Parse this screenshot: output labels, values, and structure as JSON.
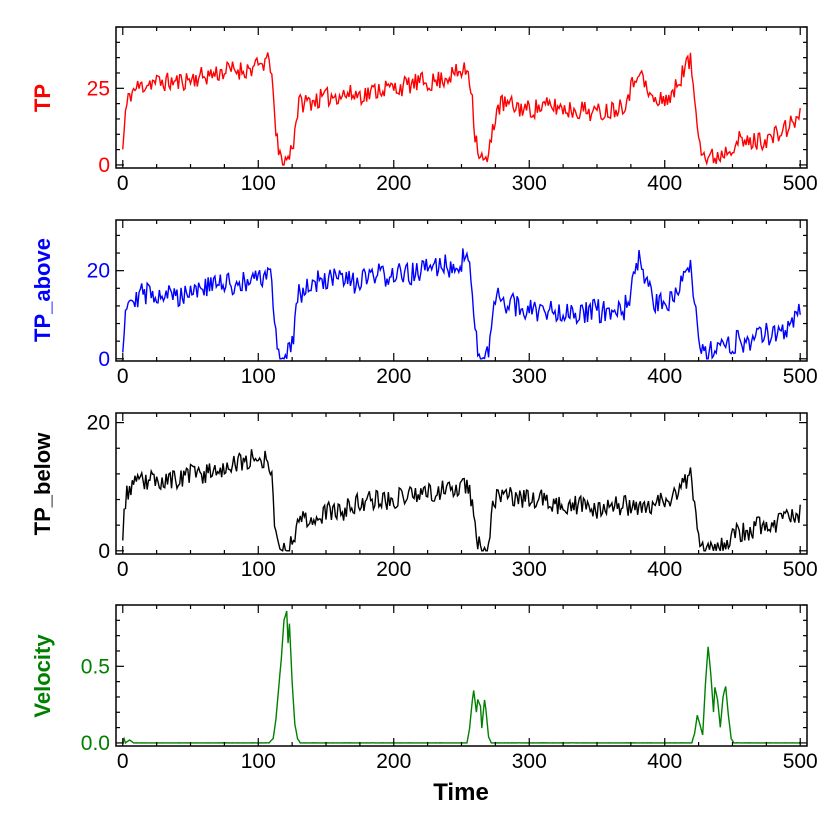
{
  "chart_data": [
    {
      "type": "line",
      "ylabel": "TP",
      "xlabel": "",
      "color": "#ff0000",
      "xlim": [
        -5,
        505
      ],
      "ylim": [
        -1,
        45
      ],
      "xticks": [
        0,
        100,
        200,
        300,
        400,
        500
      ],
      "xtick_labels": [
        "0",
        "100",
        "200",
        "300",
        "400",
        "500"
      ],
      "yticks": [
        0,
        25
      ],
      "ytick_labels": [
        "0",
        "25"
      ],
      "anchors": [
        [
          0,
          5
        ],
        [
          2,
          17
        ],
        [
          5,
          23
        ],
        [
          10,
          25
        ],
        [
          20,
          27
        ],
        [
          30,
          27
        ],
        [
          40,
          27
        ],
        [
          50,
          28
        ],
        [
          60,
          29
        ],
        [
          70,
          30
        ],
        [
          80,
          31
        ],
        [
          90,
          31
        ],
        [
          100,
          32
        ],
        [
          106,
          34
        ],
        [
          110,
          32
        ],
        [
          112,
          14
        ],
        [
          115,
          4
        ],
        [
          118,
          1
        ],
        [
          122,
          2
        ],
        [
          126,
          8
        ],
        [
          128,
          15
        ],
        [
          130,
          20
        ],
        [
          140,
          21
        ],
        [
          150,
          22
        ],
        [
          160,
          23
        ],
        [
          170,
          23
        ],
        [
          180,
          23
        ],
        [
          190,
          25
        ],
        [
          200,
          25
        ],
        [
          210,
          26
        ],
        [
          220,
          27
        ],
        [
          230,
          27
        ],
        [
          240,
          29
        ],
        [
          248,
          30
        ],
        [
          255,
          31
        ],
        [
          258,
          22
        ],
        [
          260,
          10
        ],
        [
          263,
          4
        ],
        [
          266,
          1
        ],
        [
          270,
          2
        ],
        [
          273,
          12
        ],
        [
          276,
          18
        ],
        [
          280,
          20
        ],
        [
          290,
          19
        ],
        [
          300,
          18
        ],
        [
          310,
          19
        ],
        [
          320,
          19
        ],
        [
          330,
          18
        ],
        [
          340,
          18
        ],
        [
          350,
          17
        ],
        [
          360,
          18
        ],
        [
          370,
          20
        ],
        [
          377,
          27
        ],
        [
          381,
          32
        ],
        [
          385,
          26
        ],
        [
          390,
          22
        ],
        [
          395,
          20
        ],
        [
          400,
          22
        ],
        [
          405,
          22
        ],
        [
          410,
          27
        ],
        [
          415,
          32
        ],
        [
          419,
          34
        ],
        [
          421,
          26
        ],
        [
          424,
          15
        ],
        [
          427,
          6
        ],
        [
          430,
          2
        ],
        [
          440,
          3
        ],
        [
          448,
          6
        ],
        [
          455,
          8
        ],
        [
          460,
          7
        ],
        [
          470,
          8
        ],
        [
          480,
          9
        ],
        [
          490,
          12
        ],
        [
          500,
          16
        ]
      ],
      "noise": 3.2,
      "noise_min": 0,
      "seed": 11,
      "ymin_clip": 0
    },
    {
      "type": "line",
      "ylabel": "TP_above",
      "xlabel": "",
      "color": "#0000ff",
      "xlim": [
        -5,
        505
      ],
      "ylim": [
        -0.5,
        31.5
      ],
      "xticks": [
        0,
        100,
        200,
        300,
        400,
        500
      ],
      "xtick_labels": [
        "0",
        "100",
        "200",
        "300",
        "400",
        "500"
      ],
      "yticks": [
        0,
        20
      ],
      "ytick_labels": [
        "0",
        "20"
      ],
      "anchors": [
        [
          0,
          3
        ],
        [
          2,
          12
        ],
        [
          5,
          14
        ],
        [
          20,
          15
        ],
        [
          30,
          15
        ],
        [
          40,
          14
        ],
        [
          50,
          16
        ],
        [
          60,
          16
        ],
        [
          70,
          17
        ],
        [
          80,
          17
        ],
        [
          90,
          17
        ],
        [
          100,
          18
        ],
        [
          106,
          19
        ],
        [
          110,
          18
        ],
        [
          112,
          8
        ],
        [
          115,
          2
        ],
        [
          118,
          0
        ],
        [
          122,
          1
        ],
        [
          126,
          6
        ],
        [
          128,
          12
        ],
        [
          130,
          15
        ],
        [
          140,
          17
        ],
        [
          150,
          18
        ],
        [
          160,
          18
        ],
        [
          170,
          17
        ],
        [
          180,
          18
        ],
        [
          190,
          19
        ],
        [
          200,
          19
        ],
        [
          210,
          19
        ],
        [
          220,
          20
        ],
        [
          230,
          21
        ],
        [
          240,
          21
        ],
        [
          248,
          22
        ],
        [
          255,
          23
        ],
        [
          258,
          15
        ],
        [
          260,
          6
        ],
        [
          263,
          2
        ],
        [
          266,
          0
        ],
        [
          270,
          1
        ],
        [
          273,
          9
        ],
        [
          276,
          14
        ],
        [
          280,
          13
        ],
        [
          290,
          12
        ],
        [
          300,
          11
        ],
        [
          310,
          11
        ],
        [
          320,
          11
        ],
        [
          330,
          11
        ],
        [
          340,
          10
        ],
        [
          350,
          11
        ],
        [
          360,
          10
        ],
        [
          370,
          11
        ],
        [
          377,
          17
        ],
        [
          381,
          23
        ],
        [
          385,
          18
        ],
        [
          390,
          14
        ],
        [
          395,
          12
        ],
        [
          400,
          13
        ],
        [
          405,
          13
        ],
        [
          410,
          17
        ],
        [
          415,
          21
        ],
        [
          419,
          22
        ],
        [
          421,
          16
        ],
        [
          424,
          8
        ],
        [
          427,
          3
        ],
        [
          430,
          1
        ],
        [
          440,
          2
        ],
        [
          448,
          3
        ],
        [
          455,
          4
        ],
        [
          460,
          4
        ],
        [
          470,
          5
        ],
        [
          480,
          6
        ],
        [
          490,
          7
        ],
        [
          500,
          11
        ]
      ],
      "noise": 2.7,
      "noise_min": 0,
      "seed": 29,
      "ymin_clip": 0
    },
    {
      "type": "line",
      "ylabel": "TP_below",
      "xlabel": "",
      "color": "#000000",
      "xlim": [
        -5,
        505
      ],
      "ylim": [
        -0.5,
        21.5
      ],
      "xticks": [
        0,
        100,
        200,
        300,
        400,
        500
      ],
      "xtick_labels": [
        "0",
        "100",
        "200",
        "300",
        "400",
        "500"
      ],
      "yticks": [
        0,
        20
      ],
      "ytick_labels": [
        "0",
        "20"
      ],
      "anchors": [
        [
          0,
          3
        ],
        [
          2,
          8
        ],
        [
          5,
          10
        ],
        [
          20,
          11
        ],
        [
          30,
          11
        ],
        [
          40,
          11
        ],
        [
          50,
          12
        ],
        [
          60,
          12
        ],
        [
          70,
          13
        ],
        [
          80,
          13
        ],
        [
          90,
          14
        ],
        [
          100,
          15
        ],
        [
          106,
          14
        ],
        [
          110,
          12
        ],
        [
          112,
          5
        ],
        [
          115,
          1
        ],
        [
          118,
          0
        ],
        [
          122,
          0.5
        ],
        [
          126,
          2
        ],
        [
          128,
          4
        ],
        [
          130,
          5
        ],
        [
          140,
          5
        ],
        [
          150,
          6
        ],
        [
          160,
          6
        ],
        [
          170,
          7
        ],
        [
          180,
          8
        ],
        [
          190,
          8
        ],
        [
          200,
          8
        ],
        [
          210,
          9
        ],
        [
          220,
          9
        ],
        [
          230,
          9
        ],
        [
          240,
          10
        ],
        [
          248,
          10
        ],
        [
          255,
          10
        ],
        [
          258,
          7
        ],
        [
          260,
          3
        ],
        [
          263,
          1
        ],
        [
          266,
          0
        ],
        [
          270,
          0.5
        ],
        [
          273,
          7
        ],
        [
          276,
          9
        ],
        [
          280,
          9
        ],
        [
          290,
          8
        ],
        [
          300,
          8
        ],
        [
          310,
          8
        ],
        [
          320,
          7
        ],
        [
          330,
          7
        ],
        [
          340,
          7
        ],
        [
          350,
          6
        ],
        [
          360,
          7
        ],
        [
          370,
          7
        ],
        [
          380,
          7
        ],
        [
          390,
          7
        ],
        [
          400,
          8
        ],
        [
          410,
          9
        ],
        [
          415,
          11
        ],
        [
          419,
          12
        ],
        [
          421,
          8
        ],
        [
          424,
          3
        ],
        [
          427,
          1
        ],
        [
          430,
          0.5
        ],
        [
          440,
          1
        ],
        [
          448,
          2
        ],
        [
          455,
          3
        ],
        [
          460,
          3
        ],
        [
          470,
          4
        ],
        [
          480,
          4
        ],
        [
          490,
          5
        ],
        [
          500,
          6
        ]
      ],
      "noise": 1.6,
      "noise_min": 0,
      "seed": 53,
      "ymin_clip": 0
    },
    {
      "type": "line",
      "ylabel": "Velocity",
      "xlabel": "Time",
      "color": "#008000",
      "xlim": [
        -5,
        505
      ],
      "ylim": [
        -0.02,
        0.9
      ],
      "xticks": [
        0,
        100,
        200,
        300,
        400,
        500
      ],
      "xtick_labels": [
        "0",
        "100",
        "200",
        "300",
        "400",
        "500"
      ],
      "yticks": [
        0.0,
        0.5
      ],
      "ytick_labels": [
        "0.0",
        "0.5"
      ],
      "anchors": [
        [
          0,
          0.0
        ],
        [
          1,
          0.03
        ],
        [
          2,
          0.0
        ],
        [
          5,
          0.02
        ],
        [
          8,
          0.0
        ],
        [
          108,
          0.0
        ],
        [
          111,
          0.03
        ],
        [
          113,
          0.15
        ],
        [
          115,
          0.35
        ],
        [
          117,
          0.55
        ],
        [
          119,
          0.8
        ],
        [
          121,
          0.86
        ],
        [
          122,
          0.65
        ],
        [
          123,
          0.78
        ],
        [
          125,
          0.4
        ],
        [
          127,
          0.12
        ],
        [
          129,
          0.03
        ],
        [
          131,
          0.0
        ],
        [
          254,
          0.0
        ],
        [
          256,
          0.1
        ],
        [
          258,
          0.28
        ],
        [
          259,
          0.34
        ],
        [
          261,
          0.2
        ],
        [
          262,
          0.28
        ],
        [
          264,
          0.24
        ],
        [
          265,
          0.1
        ],
        [
          267,
          0.28
        ],
        [
          268,
          0.22
        ],
        [
          270,
          0.04
        ],
        [
          272,
          0.0
        ],
        [
          420,
          0.0
        ],
        [
          422,
          0.06
        ],
        [
          424,
          0.18
        ],
        [
          426,
          0.12
        ],
        [
          428,
          0.05
        ],
        [
          430,
          0.38
        ],
        [
          432,
          0.63
        ],
        [
          434,
          0.45
        ],
        [
          436,
          0.2
        ],
        [
          437,
          0.36
        ],
        [
          439,
          0.28
        ],
        [
          441,
          0.1
        ],
        [
          443,
          0.3
        ],
        [
          445,
          0.37
        ],
        [
          447,
          0.18
        ],
        [
          449,
          0.03
        ],
        [
          451,
          0.0
        ],
        [
          500,
          0.0
        ]
      ],
      "noise": 0.004,
      "noise_min": 0,
      "seed": 71,
      "ymin_clip": 0
    }
  ]
}
